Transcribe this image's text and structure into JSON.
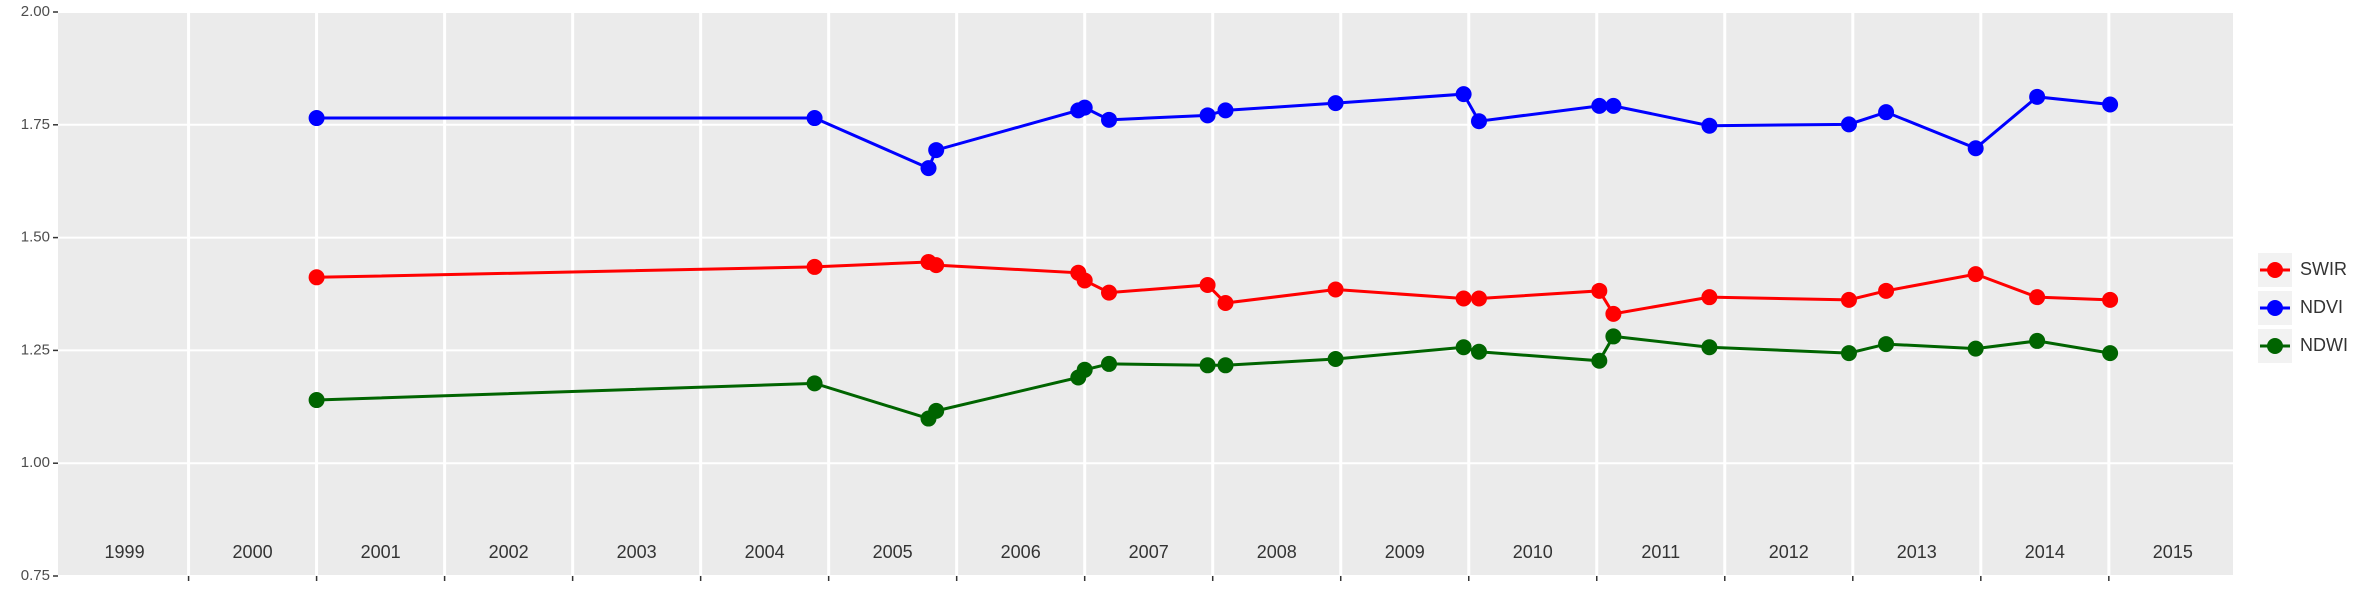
{
  "chart_data": {
    "type": "line",
    "x": [
      2001.0,
      2004.89,
      2005.78,
      2005.84,
      2006.95,
      2007.0,
      2007.19,
      2007.96,
      2008.1,
      2008.96,
      2009.96,
      2010.08,
      2011.02,
      2011.13,
      2011.88,
      2012.97,
      2013.26,
      2013.96,
      2014.44,
      2015.01
    ],
    "series": [
      {
        "name": "SWIR",
        "color": "#ff0000",
        "values": [
          1.412,
          1.435,
          1.446,
          1.439,
          1.422,
          1.405,
          1.378,
          1.395,
          1.355,
          1.385,
          1.365,
          1.365,
          1.382,
          1.331,
          1.368,
          1.362,
          1.382,
          1.419,
          1.368,
          1.362
        ]
      },
      {
        "name": "NDVI",
        "color": "#0000ff",
        "values": [
          1.765,
          1.765,
          1.654,
          1.694,
          1.782,
          1.788,
          1.761,
          1.771,
          1.782,
          1.798,
          1.818,
          1.758,
          1.792,
          1.792,
          1.748,
          1.751,
          1.778,
          1.698,
          1.812,
          1.795
        ]
      },
      {
        "name": "NDWI",
        "color": "#006400",
        "values": [
          1.14,
          1.177,
          1.099,
          1.116,
          1.19,
          1.207,
          1.22,
          1.217,
          1.217,
          1.231,
          1.257,
          1.247,
          1.227,
          1.281,
          1.257,
          1.244,
          1.264,
          1.254,
          1.271,
          1.244
        ]
      }
    ],
    "xlim": [
      1998.98,
      2015.97
    ],
    "xticks": [
      {
        "value": 1999.5,
        "label": "1999"
      },
      {
        "value": 2000.5,
        "label": "2000"
      },
      {
        "value": 2001.5,
        "label": "2001"
      },
      {
        "value": 2002.5,
        "label": "2002"
      },
      {
        "value": 2003.5,
        "label": "2003"
      },
      {
        "value": 2004.5,
        "label": "2004"
      },
      {
        "value": 2005.5,
        "label": "2005"
      },
      {
        "value": 2006.5,
        "label": "2006"
      },
      {
        "value": 2007.5,
        "label": "2007"
      },
      {
        "value": 2008.5,
        "label": "2008"
      },
      {
        "value": 2009.5,
        "label": "2009"
      },
      {
        "value": 2010.5,
        "label": "2010"
      },
      {
        "value": 2011.5,
        "label": "2011"
      },
      {
        "value": 2012.5,
        "label": "2012"
      },
      {
        "value": 2013.5,
        "label": "2013"
      },
      {
        "value": 2014.5,
        "label": "2014"
      },
      {
        "value": 2015.5,
        "label": "2015"
      }
    ],
    "xgrid": [
      2000,
      2001,
      2002,
      2003,
      2004,
      2005,
      2006,
      2007,
      2008,
      2009,
      2010,
      2011,
      2012,
      2013,
      2014,
      2015
    ],
    "ylim": [
      0.75,
      2.0
    ],
    "yticks": [
      {
        "value": 0.75,
        "label": "0.75"
      },
      {
        "value": 1.0,
        "label": "1.00"
      },
      {
        "value": 1.25,
        "label": "1.25"
      },
      {
        "value": 1.5,
        "label": "1.50"
      },
      {
        "value": 1.75,
        "label": "1.75"
      },
      {
        "value": 2.0,
        "label": "2.00"
      }
    ],
    "grid": true,
    "legend": "right"
  }
}
